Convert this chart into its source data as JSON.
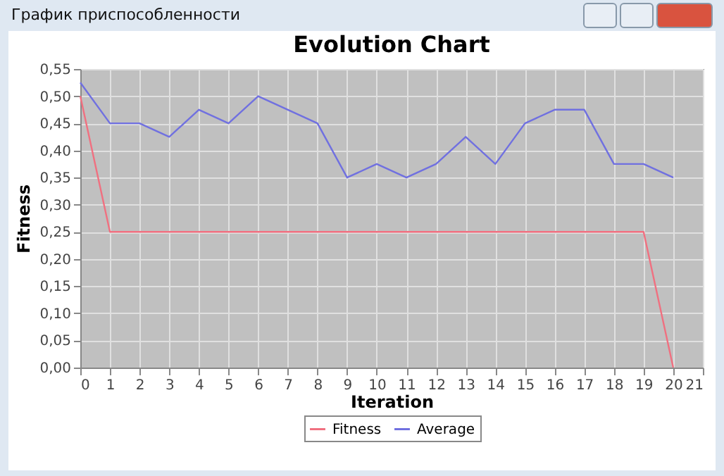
{
  "chart_data": {
    "type": "line",
    "title": "Evolution Chart",
    "xlabel": "Iteration",
    "ylabel": "Fitness",
    "annotations": [
      "График приспособленности"
    ],
    "x": [
      0,
      1,
      2,
      3,
      4,
      5,
      6,
      7,
      8,
      9,
      10,
      11,
      12,
      13,
      14,
      15,
      16,
      17,
      18,
      19,
      20
    ],
    "series": [
      {
        "name": "Fitness",
        "color": "#f07080",
        "values": [
          0.5,
          0.25,
          0.25,
          0.25,
          0.25,
          0.25,
          0.25,
          0.25,
          0.25,
          0.25,
          0.25,
          0.25,
          0.25,
          0.25,
          0.25,
          0.25,
          0.25,
          0.25,
          0.25,
          0.25,
          0
        ]
      },
      {
        "name": "Average",
        "color": "#7070e0",
        "values": [
          0.525,
          0.45,
          0.45,
          0.425,
          0.475,
          0.45,
          0.5,
          0.475,
          0.45,
          0.35,
          0.375,
          0.35,
          0.375,
          0.425,
          0.375,
          0.45,
          0.475,
          0.475,
          0.375,
          0.375,
          0.35
        ]
      }
    ],
    "xlim": [
      0,
      21
    ],
    "xticks": [
      0,
      1,
      2,
      3,
      4,
      5,
      6,
      7,
      8,
      9,
      10,
      11,
      12,
      13,
      14,
      15,
      16,
      17,
      18,
      19,
      20,
      21
    ],
    "ylim": [
      0,
      0.55
    ],
    "yticks": [
      {
        "value": 0,
        "label": "0,00"
      },
      {
        "value": 0.05,
        "label": "0,05"
      },
      {
        "value": 0.1,
        "label": "0,10"
      },
      {
        "value": 0.15,
        "label": "0,15"
      },
      {
        "value": 0.2,
        "label": "0,20"
      },
      {
        "value": 0.25,
        "label": "0,25"
      },
      {
        "value": 0.3,
        "label": "0,30"
      },
      {
        "value": 0.35,
        "label": "0,35"
      },
      {
        "value": 0.4,
        "label": "0,40"
      },
      {
        "value": 0.45,
        "label": "0,45"
      },
      {
        "value": 0.5,
        "label": "0,50"
      },
      {
        "value": 0.55,
        "label": "0,55"
      }
    ],
    "grid": true,
    "legend": "bottom",
    "marker": "none",
    "line_style": "solid"
  }
}
